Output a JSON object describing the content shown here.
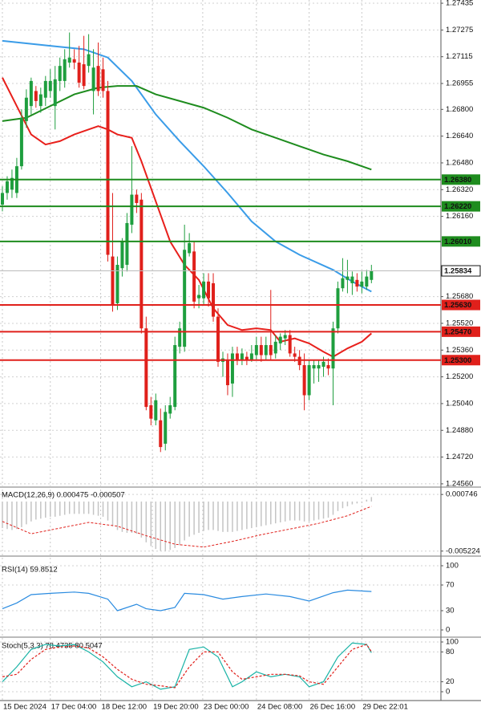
{
  "chart_data": [
    {
      "type": "candlestick",
      "xlim": [
        -0.5,
        91.5
      ],
      "xticks": [
        {
          "value": 0,
          "label": "15 Dec 2024"
        },
        {
          "value": 10,
          "label": "17 Dec 04:00"
        },
        {
          "value": 20.5,
          "label": "18 Dec 12:00"
        },
        {
          "value": 31.3,
          "label": "19 Dec 20:00"
        },
        {
          "value": 41.8,
          "label": "23 Dec 00:00"
        },
        {
          "value": 53,
          "label": "24 Dec 08:00"
        },
        {
          "value": 64,
          "label": "26 Dec 16:00"
        },
        {
          "value": 75,
          "label": "29 Dec 22:01"
        }
      ],
      "ylim": [
        1.2455,
        1.2744
      ],
      "yticks": [
        1.27435,
        1.27275,
        1.27115,
        1.26955,
        {
          "value": 1.268,
          "label": "1.26800"
        },
        {
          "value": 1.2664,
          "label": "1.26640"
        },
        {
          "value": 1.2648,
          "label": "1.26480"
        },
        {
          "value": 1.2632,
          "label": "1.26320"
        },
        {
          "value": 1.2616,
          "label": "1.26160"
        },
        {
          "value": 1.2568,
          "label": "1.25680"
        },
        {
          "value": 1.2552,
          "label": "1.25520"
        },
        {
          "value": 1.2536,
          "label": "1.25360"
        },
        {
          "value": 1.252,
          "label": "1.25200"
        },
        {
          "value": 1.2504,
          "label": "1.25040"
        },
        {
          "value": 1.2488,
          "label": "1.24880"
        },
        {
          "value": 1.2472,
          "label": "1.24720"
        },
        {
          "value": 1.2456,
          "label": "1.24560"
        }
      ],
      "grid": true,
      "up_color": "#1e9e3e",
      "down_color": "#e0201b",
      "open": [
        1.2623,
        1.263,
        1.2632,
        1.263,
        1.2646,
        1.2673,
        1.2682,
        1.2691,
        1.2682,
        1.2687,
        1.2691,
        1.2682,
        1.2697,
        1.2697,
        1.2708,
        1.271,
        1.2708,
        1.2707,
        1.2706,
        1.2691,
        1.2706,
        1.2704,
        1.2691,
        1.2592,
        1.2564,
        1.2585,
        1.2587,
        1.2611,
        1.2629,
        1.2626,
        1.2549,
        1.2503,
        1.2494,
        1.2494,
        1.248,
        1.2498,
        1.2502,
        1.2538,
        1.2538,
        1.2594,
        1.2595,
        1.2567,
        1.2567,
        1.2577,
        1.2576,
        1.2556,
        1.2529,
        1.253,
        1.2516,
        1.2534,
        1.253,
        1.2532,
        1.253,
        1.2533,
        1.2539,
        1.2533,
        1.2539,
        1.2534,
        1.254,
        1.2543,
        1.2545,
        1.2534,
        1.2532,
        1.2527,
        1.2509,
        1.2525,
        1.2525,
        1.2526,
        1.2527,
        1.2525,
        1.2549,
        1.2573,
        1.2578,
        1.2576,
        1.2578,
        1.2574,
        1.2574,
        1.2578
      ],
      "high": [
        1.2634,
        1.264,
        1.2644,
        1.2651,
        1.268,
        1.2692,
        1.2699,
        1.2694,
        1.2693,
        1.27,
        1.2704,
        1.2706,
        1.2711,
        1.2716,
        1.2726,
        1.2716,
        1.2718,
        1.2724,
        1.2725,
        1.2716,
        1.272,
        1.2711,
        1.2697,
        1.263,
        1.2592,
        1.2603,
        1.2618,
        1.2658,
        1.2632,
        1.263,
        1.2556,
        1.2508,
        1.251,
        1.2501,
        1.2503,
        1.2508,
        1.2544,
        1.2553,
        1.2611,
        1.2606,
        1.2601,
        1.2575,
        1.2582,
        1.2582,
        1.2582,
        1.2561,
        1.2535,
        1.2534,
        1.2538,
        1.2538,
        1.2537,
        1.2535,
        1.2539,
        1.2544,
        1.2544,
        1.2544,
        1.2572,
        1.2545,
        1.2546,
        1.2548,
        1.2548,
        1.2538,
        1.2536,
        1.2534,
        1.253,
        1.253,
        1.253,
        1.2532,
        1.2531,
        1.2553,
        1.2577,
        1.2591,
        1.259,
        1.2583,
        1.2582,
        1.2583,
        1.2584,
        1.2587
      ],
      "low": [
        1.2619,
        1.2626,
        1.2627,
        1.2627,
        1.2644,
        1.2669,
        1.2677,
        1.2681,
        1.2678,
        1.2682,
        1.2687,
        1.2668,
        1.2691,
        1.2693,
        1.2705,
        1.2704,
        1.2693,
        1.2692,
        1.2702,
        1.2677,
        1.2688,
        1.2687,
        1.2589,
        1.2559,
        1.256,
        1.258,
        1.2583,
        1.2606,
        1.2618,
        1.2546,
        1.25,
        1.2491,
        1.2491,
        1.2475,
        1.2476,
        1.2495,
        1.25,
        1.2534,
        1.2535,
        1.2592,
        1.2561,
        1.2561,
        1.2563,
        1.2562,
        1.2553,
        1.2526,
        1.252,
        1.2509,
        1.2508,
        1.2527,
        1.2527,
        1.2527,
        1.2529,
        1.253,
        1.2529,
        1.253,
        1.253,
        1.2531,
        1.2536,
        1.2539,
        1.2532,
        1.2529,
        1.2524,
        1.25,
        1.2506,
        1.2516,
        1.2517,
        1.252,
        1.2521,
        1.2503,
        1.2546,
        1.2571,
        1.257,
        1.2569,
        1.2571,
        1.257,
        1.2572,
        1.2576
      ],
      "close": [
        1.263,
        1.2637,
        1.2639,
        1.2646,
        1.2675,
        1.2687,
        1.2697,
        1.2685,
        1.2689,
        1.2697,
        1.2697,
        1.2698,
        1.2706,
        1.271,
        1.2711,
        1.2708,
        1.2696,
        1.2694,
        1.2713,
        1.2705,
        1.2691,
        1.2691,
        1.2593,
        1.2563,
        1.2587,
        1.2601,
        1.2612,
        1.2629,
        1.2624,
        1.2549,
        1.2502,
        1.2495,
        1.2506,
        1.2478,
        1.2499,
        1.2503,
        1.2539,
        1.2549,
        1.2596,
        1.26,
        1.2565,
        1.2569,
        1.2577,
        1.2567,
        1.2556,
        1.2529,
        1.2531,
        1.2515,
        1.2534,
        1.253,
        1.2534,
        1.253,
        1.2534,
        1.2539,
        1.2533,
        1.2539,
        1.2533,
        1.2541,
        1.2544,
        1.2545,
        1.2534,
        1.2532,
        1.2527,
        1.2509,
        1.2527,
        1.2527,
        1.2527,
        1.2529,
        1.2525,
        1.2549,
        1.2573,
        1.2579,
        1.258,
        1.258,
        1.2574,
        1.2577,
        1.258,
        1.25834
      ],
      "overlays": [
        {
          "color": "#3a9ce8",
          "x": [
            0,
            10,
            17,
            22,
            27,
            32,
            37,
            42,
            47,
            52,
            57,
            62,
            69,
            73,
            77
          ],
          "values": [
            1.2721,
            1.2718,
            1.2716,
            1.2711,
            1.2697,
            1.2677,
            1.2661,
            1.2646,
            1.263,
            1.2613,
            1.2601,
            1.2593,
            1.2584,
            1.2577,
            1.2571
          ]
        },
        {
          "color": "#1e8c1e",
          "x": [
            0,
            5,
            10,
            15,
            20,
            24,
            28,
            32,
            37,
            42,
            47,
            52,
            57,
            62,
            67,
            72,
            77
          ],
          "values": [
            1.2673,
            1.2675,
            1.2682,
            1.2689,
            1.2693,
            1.2694,
            1.2694,
            1.2689,
            1.2685,
            1.2681,
            1.2675,
            1.2668,
            1.2663,
            1.2658,
            1.2653,
            1.2649,
            1.2644
          ]
        },
        {
          "color": "#e8201c",
          "x": [
            0,
            3,
            6,
            9,
            12,
            15,
            18,
            20,
            22,
            24,
            27,
            29,
            32,
            35,
            38,
            41,
            44,
            47,
            50,
            53,
            56,
            58,
            61,
            64,
            67,
            69,
            72,
            75,
            77
          ],
          "values": [
            1.2699,
            1.2682,
            1.2665,
            1.2659,
            1.2661,
            1.2665,
            1.2668,
            1.267,
            1.2668,
            1.2665,
            1.2663,
            1.2649,
            1.2625,
            1.2601,
            1.2587,
            1.2578,
            1.2561,
            1.2551,
            1.2548,
            1.2549,
            1.2548,
            1.2541,
            1.2543,
            1.254,
            1.2535,
            1.2532,
            1.2537,
            1.2541,
            1.2546
          ]
        }
      ],
      "levels": [
        {
          "value": 1.2638,
          "label": "1.26380",
          "color": "#1e8c1e"
        },
        {
          "value": 1.2622,
          "label": "1.26220",
          "color": "#1e8c1e"
        },
        {
          "value": 1.2601,
          "label": "1.26010",
          "color": "#1e8c1e"
        },
        {
          "value": 1.2563,
          "label": "1.25630",
          "color": "#e0201b"
        },
        {
          "value": 1.2547,
          "label": "1.25470",
          "color": "#e0201b"
        },
        {
          "value": 1.253,
          "label": "1.25300",
          "color": "#e0201b"
        }
      ],
      "last_price": 1.25834
    },
    {
      "type": "macd",
      "title": "MACD(12,26,9) 0.000475 -0.000507",
      "ylim": [
        -0.0055,
        0.0011
      ],
      "yticks": [
        0.000746,
        -0.005224
      ],
      "color": "#c4c4c4",
      "values": [
        -0.0028,
        -0.0029,
        -0.003,
        -0.0029,
        -0.0027,
        -0.0024,
        -0.0021,
        -0.0019,
        -0.0018,
        -0.0017,
        -0.0016,
        -0.0016,
        -0.0015,
        -0.0014,
        -0.0013,
        -0.0013,
        -0.0013,
        -0.0013,
        -0.0013,
        -0.0014,
        -0.0015,
        -0.0016,
        -0.002,
        -0.0026,
        -0.003,
        -0.0032,
        -0.0033,
        -0.0033,
        -0.0034,
        -0.0038,
        -0.0043,
        -0.0047,
        -0.005,
        -0.0052,
        -0.0052,
        -0.0051,
        -0.0049,
        -0.0046,
        -0.0041,
        -0.0037,
        -0.0035,
        -0.0033,
        -0.0031,
        -0.003,
        -0.003,
        -0.0031,
        -0.0032,
        -0.0032,
        -0.0032,
        -0.0031,
        -0.003,
        -0.0029,
        -0.0028,
        -0.0027,
        -0.0026,
        -0.0025,
        -0.0024,
        -0.0023,
        -0.0022,
        -0.0021,
        -0.002,
        -0.002,
        -0.002,
        -0.0021,
        -0.0021,
        -0.002,
        -0.0019,
        -0.0018,
        -0.0017,
        -0.0014,
        -0.001,
        -0.0007,
        -0.0005,
        -0.0003,
        -0.0002,
        -0.0001,
        0.0002,
        0.000475
      ],
      "signal": {
        "color": "#e0201b",
        "x": [
          0,
          6,
          12,
          18,
          24,
          30,
          36,
          42,
          48,
          54,
          60,
          66,
          72,
          77
        ],
        "values": [
          -0.0021,
          -0.0034,
          -0.0028,
          -0.0022,
          -0.0026,
          -0.0036,
          -0.0045,
          -0.0048,
          -0.0042,
          -0.0035,
          -0.0029,
          -0.0023,
          -0.0015,
          -0.000507
        ]
      }
    },
    {
      "type": "line",
      "title": "RSI(14) 59.8512",
      "ylim": [
        0,
        100
      ],
      "yticks": [
        100,
        70,
        30,
        0
      ],
      "series": [
        {
          "color": "#2a8be0",
          "dash": false,
          "x": [
            0,
            3,
            6,
            10,
            15,
            18,
            22,
            24,
            28,
            30,
            33,
            36,
            38,
            42,
            46,
            50,
            55,
            60,
            64,
            69,
            72,
            77
          ],
          "values": [
            33,
            42,
            55,
            57,
            59,
            57,
            48,
            30,
            40,
            33,
            30,
            35,
            57,
            55,
            48,
            52,
            56,
            52,
            45,
            58,
            62,
            59.8512
          ]
        }
      ]
    },
    {
      "type": "line",
      "title": "Stoch(5,3,3) 78.4735 80.5047",
      "ylim": [
        0,
        100
      ],
      "yticks": [
        100,
        80,
        20,
        0
      ],
      "series": [
        {
          "color": "#19b3a6",
          "dash": false,
          "x": [
            0,
            3,
            6,
            9,
            12,
            15,
            18,
            21,
            24,
            27,
            30,
            33,
            36,
            39,
            42,
            45,
            48,
            50,
            53,
            56,
            59,
            62,
            64,
            67,
            70,
            73,
            76,
            77
          ],
          "values": [
            20,
            50,
            85,
            95,
            92,
            95,
            80,
            60,
            30,
            10,
            20,
            5,
            10,
            85,
            90,
            70,
            10,
            20,
            40,
            30,
            35,
            30,
            10,
            20,
            70,
            98,
            95,
            78.4735
          ]
        },
        {
          "color": "#e0201b",
          "dash": true,
          "x": [
            0,
            3,
            6,
            9,
            12,
            15,
            18,
            21,
            24,
            27,
            30,
            33,
            36,
            39,
            42,
            45,
            48,
            50,
            53,
            56,
            59,
            62,
            64,
            67,
            70,
            73,
            76,
            77
          ],
          "values": [
            30,
            35,
            65,
            85,
            90,
            92,
            88,
            70,
            45,
            25,
            15,
            12,
            8,
            50,
            80,
            80,
            40,
            25,
            30,
            35,
            35,
            32,
            20,
            15,
            50,
            85,
            95,
            80.5047
          ]
        }
      ]
    }
  ]
}
